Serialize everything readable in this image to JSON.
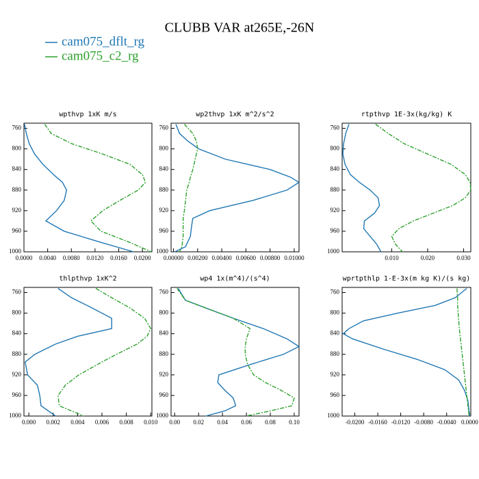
{
  "title": "CLUBB VAR at265E,-26N",
  "legend": [
    {
      "name": "cam075_dflt_rg",
      "color": "#1f77b4"
    },
    {
      "name": "cam075_c2_rg",
      "color": "#2ca02c",
      "dash": "6,2,2,2"
    }
  ],
  "chart_data": [
    {
      "type": "line",
      "title": "wpthvp  1xK m/s",
      "levels": [
        752,
        770,
        790,
        810,
        830,
        850,
        865,
        880,
        900,
        920,
        940,
        960,
        980,
        1000
      ],
      "series": [
        {
          "values": [
            0.0001,
            0.0004,
            0.0009,
            0.0018,
            0.0032,
            0.005,
            0.0065,
            0.0072,
            0.0068,
            0.0055,
            0.0037,
            0.0068,
            0.0125,
            0.0185
          ]
        },
        {
          "values": [
            0.0035,
            0.0046,
            0.0081,
            0.0133,
            0.0179,
            0.02,
            0.0205,
            0.0193,
            0.0162,
            0.0133,
            0.0113,
            0.013,
            0.0175,
            0.0215
          ]
        }
      ],
      "xlim": [
        0,
        0.0216
      ],
      "xticks": [
        {
          "value": 0,
          "label": "0.0000"
        },
        {
          "value": 0.004,
          "label": "0.0040"
        },
        {
          "value": 0.008,
          "label": "0.0080"
        },
        {
          "value": 0.012,
          "label": "0.0120"
        },
        {
          "value": 0.016,
          "label": "0.0160"
        },
        {
          "value": 0.02,
          "label": "0.0200"
        }
      ],
      "ylim": [
        1000,
        750
      ],
      "yticks": [
        760,
        800,
        840,
        880,
        920,
        960,
        1000
      ]
    },
    {
      "type": "line",
      "title": "wp2thvp  1xK m^2/s^2",
      "levels": [
        752,
        770,
        785,
        800,
        820,
        840,
        855,
        865,
        880,
        900,
        920,
        935,
        950,
        970,
        990,
        1000
      ],
      "series": [
        {
          "values": [
            0.0002,
            0.0005,
            0.0012,
            0.0021,
            0.0043,
            0.008,
            0.0097,
            0.0104,
            0.0094,
            0.0066,
            0.003,
            0.0016,
            0.0015,
            0.0014,
            0.001,
            0.0001
          ]
        },
        {
          "values": [
            0.0009,
            0.0016,
            0.0019,
            0.002,
            0.0018,
            0.0016,
            0.0014,
            0.0013,
            0.0011,
            0.001,
            0.0009,
            0.0008,
            0.0008,
            0.0008,
            0.0007,
            0.0005
          ]
        }
      ],
      "xlim": [
        -0.0002,
        0.0104
      ],
      "xticks": [
        {
          "value": 0,
          "label": "0.00000"
        },
        {
          "value": 0.002,
          "label": "0.00200"
        },
        {
          "value": 0.004,
          "label": "0.00400"
        },
        {
          "value": 0.006,
          "label": "0.00600"
        },
        {
          "value": 0.008,
          "label": "0.00800"
        },
        {
          "value": 0.01,
          "label": "0.01000"
        }
      ],
      "ylim": [
        1000,
        750
      ],
      "yticks": [
        760,
        800,
        840,
        880,
        920,
        960,
        1000
      ]
    },
    {
      "type": "line",
      "title": "rtpthvp  1E-3x(kg/kg) K",
      "levels": [
        752,
        770,
        790,
        810,
        830,
        850,
        865,
        880,
        895,
        910,
        925,
        940,
        955,
        970,
        985,
        1000
      ],
      "series": [
        {
          "values": [
            -0.0019,
            -0.0028,
            -0.0034,
            -0.0036,
            -0.003,
            -0.0015,
            0.001,
            0.004,
            0.0062,
            0.0066,
            0.0052,
            0.0024,
            0.0022,
            0.004,
            0.0058,
            0.007
          ]
        },
        {
          "values": [
            0.0055,
            0.009,
            0.0135,
            0.02,
            0.0265,
            0.0305,
            0.0318,
            0.032,
            0.0305,
            0.027,
            0.0215,
            0.016,
            0.012,
            0.01,
            0.011,
            0.013
          ]
        }
      ],
      "xlim": [
        -0.0038,
        0.032
      ],
      "xticks": [
        {
          "value": 0.01,
          "label": "0.010"
        },
        {
          "value": 0.02,
          "label": "0.020"
        },
        {
          "value": 0.03,
          "label": "0.030"
        }
      ],
      "ylim": [
        1000,
        750
      ],
      "yticks": [
        760,
        800,
        840,
        880,
        920,
        960,
        1000
      ]
    },
    {
      "type": "line",
      "title": "thlpthvp  1xK^2",
      "levels": [
        752,
        770,
        790,
        810,
        830,
        845,
        860,
        880,
        895,
        920,
        940,
        960,
        980,
        1000
      ],
      "series": [
        {
          "values": [
            0.0024,
            0.0035,
            0.0052,
            0.0068,
            0.0068,
            0.004,
            0.0022,
            0.0005,
            -0.0003,
            -0.0001,
            0.0007,
            0.0009,
            0.001,
            0.0022
          ]
        },
        {
          "values": [
            0.0055,
            0.0068,
            0.0083,
            0.0095,
            0.01,
            0.0097,
            0.0089,
            0.0072,
            0.006,
            0.0041,
            0.003,
            0.0024,
            0.0025,
            0.0045
          ]
        }
      ],
      "xlim": [
        -0.0004,
        0.0101
      ],
      "xticks": [
        {
          "value": 0,
          "label": "0.000"
        },
        {
          "value": 0.002,
          "label": "0.002"
        },
        {
          "value": 0.004,
          "label": "0.004"
        },
        {
          "value": 0.006,
          "label": "0.006"
        },
        {
          "value": 0.008,
          "label": "0.008"
        },
        {
          "value": 0.01,
          "label": "0.010"
        }
      ],
      "ylim": [
        1000,
        750
      ],
      "yticks": [
        760,
        800,
        840,
        880,
        920,
        960,
        1000
      ]
    },
    {
      "type": "line",
      "title": "wp4  1x(m^4)/(s^4)",
      "levels": [
        752,
        775,
        790,
        810,
        830,
        850,
        865,
        880,
        900,
        920,
        935,
        950,
        965,
        980,
        990,
        1000
      ],
      "series": [
        {
          "values": [
            0.003,
            0.009,
            0.026,
            0.049,
            0.074,
            0.094,
            0.104,
            0.091,
            0.063,
            0.037,
            0.036,
            0.042,
            0.049,
            0.051,
            0.042,
            0.026
          ]
        },
        {
          "values": [
            0.002,
            0.009,
            0.026,
            0.049,
            0.063,
            0.06,
            0.059,
            0.059,
            0.061,
            0.066,
            0.076,
            0.089,
            0.1,
            0.098,
            0.08,
            0.06
          ]
        }
      ],
      "xlim": [
        -0.003,
        0.104
      ],
      "xticks": [
        {
          "value": 0,
          "label": "0.00"
        },
        {
          "value": 0.02,
          "label": "0.02"
        },
        {
          "value": 0.04,
          "label": "0.04"
        },
        {
          "value": 0.06,
          "label": "0.06"
        },
        {
          "value": 0.08,
          "label": "0.08"
        },
        {
          "value": 0.1,
          "label": "0.10"
        }
      ],
      "ylim": [
        1000,
        750
      ],
      "yticks": [
        760,
        800,
        840,
        880,
        920,
        960,
        1000
      ]
    },
    {
      "type": "line",
      "title": "wprtpthlp  1-E-3x(m kg K)/(s kg)",
      "levels": [
        752,
        770,
        785,
        800,
        815,
        830,
        840,
        850,
        870,
        890,
        910,
        930,
        950,
        970,
        1000
      ],
      "series": [
        {
          "values": [
            -0.0005,
            -0.0025,
            -0.006,
            -0.0125,
            -0.0185,
            -0.021,
            -0.022,
            -0.0204,
            -0.015,
            -0.0091,
            -0.0043,
            -0.0019,
            -0.0009,
            -0.0003,
            0
          ]
        },
        {
          "values": [
            -0.0022,
            -0.0021,
            -0.0021,
            -0.002,
            -0.0019,
            -0.0018,
            -0.0017,
            -0.0016,
            -0.0014,
            -0.0012,
            -0.001,
            -0.0008,
            -0.0006,
            -0.0004,
            -0.0001
          ]
        }
      ],
      "xlim": [
        -0.0222,
        0.0002
      ],
      "xticks": [
        {
          "value": -0.02,
          "label": "-0.0200"
        },
        {
          "value": -0.016,
          "label": "-0.0160"
        },
        {
          "value": -0.012,
          "label": "-0.0120"
        },
        {
          "value": -0.008,
          "label": "-0.0080"
        },
        {
          "value": -0.004,
          "label": "-0.0040"
        },
        {
          "value": 0,
          "label": "0.0000"
        }
      ],
      "ylim": [
        1000,
        750
      ],
      "yticks": [
        760,
        800,
        840,
        880,
        920,
        960,
        1000
      ]
    }
  ]
}
